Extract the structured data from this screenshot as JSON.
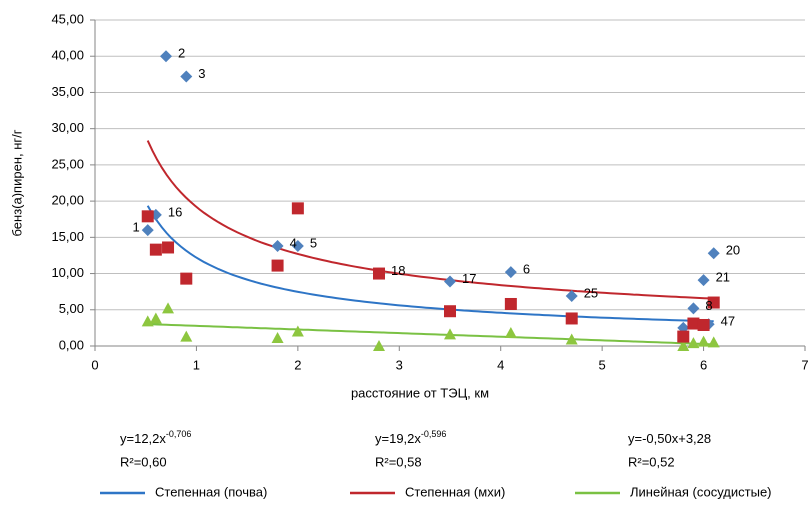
{
  "chart_data": {
    "type": "scatter",
    "x_label": "расстояние от ТЭЦ, км",
    "y_label": "бенз(а)пирен, нг/г",
    "xlim": [
      0,
      7
    ],
    "xticks": [
      0,
      1,
      2,
      3,
      4,
      5,
      6,
      7
    ],
    "ylim": [
      0,
      45
    ],
    "yticks": [
      {
        "value": 0,
        "label": "0,00"
      },
      {
        "value": 5,
        "label": "5,00"
      },
      {
        "value": 10,
        "label": "10,00"
      },
      {
        "value": 15,
        "label": "15,00"
      },
      {
        "value": 20,
        "label": "20,00"
      },
      {
        "value": 25,
        "label": "25,00"
      },
      {
        "value": 30,
        "label": "30,00"
      },
      {
        "value": 35,
        "label": "35,00"
      },
      {
        "value": 40,
        "label": "40,00"
      },
      {
        "value": 45,
        "label": "45,00"
      }
    ],
    "grid": true,
    "series": [
      {
        "color": "#4f81bd",
        "marker": "diamond",
        "x": [
          0.52,
          0.6,
          0.7,
          0.9,
          1.8,
          2.0,
          2.8,
          3.5,
          4.1,
          4.7,
          5.8,
          5.9,
          6.0,
          6.1,
          6.05
        ],
        "values": [
          16.0,
          18.1,
          40.0,
          37.2,
          13.8,
          13.8,
          10.0,
          8.9,
          10.2,
          6.9,
          2.5,
          5.2,
          9.1,
          12.8,
          3.0
        ],
        "point_labels": [
          "1",
          "16",
          "2",
          "3",
          "4",
          "5",
          "18",
          "17",
          "6",
          "25",
          null,
          "8",
          "21",
          "20",
          "47"
        ]
      },
      {
        "color": "#c0272d",
        "marker": "square",
        "x": [
          0.52,
          0.6,
          0.72,
          0.9,
          1.8,
          2.0,
          2.8,
          3.5,
          4.1,
          4.7,
          5.8,
          5.9,
          6.0,
          6.1
        ],
        "values": [
          17.9,
          13.3,
          13.6,
          9.3,
          11.1,
          19.0,
          10.0,
          4.8,
          5.8,
          3.8,
          1.3,
          3.1,
          2.9,
          6.0
        ]
      },
      {
        "color": "#8dc63f",
        "marker": "triangle",
        "x": [
          0.52,
          0.6,
          0.72,
          0.9,
          1.8,
          2.0,
          2.8,
          3.5,
          4.1,
          4.7,
          5.8,
          5.9,
          6.0,
          6.1
        ],
        "values": [
          3.4,
          3.8,
          5.2,
          1.3,
          1.1,
          2.0,
          0.0,
          1.6,
          1.8,
          0.9,
          0.0,
          0.4,
          0.6,
          0.5
        ]
      }
    ],
    "trendlines": [
      {
        "name": "Степенная (почва)",
        "color": "#2e75c6",
        "kind": "power",
        "a": 12.2,
        "b": -0.706,
        "range": [
          0.52,
          6.1
        ],
        "equation": {
          "base": "y=12,2x",
          "exponent": "-0,706"
        },
        "r2": "R²=0,60"
      },
      {
        "name": "Степенная (мхи)",
        "color": "#c0272d",
        "kind": "power",
        "a": 19.2,
        "b": -0.596,
        "range": [
          0.52,
          6.1
        ],
        "equation": {
          "base": "y=19,2x",
          "exponent": "-0,596"
        },
        "r2": "R²=0,58"
      },
      {
        "name": "Линейная (сосудистые)",
        "color": "#7ac143",
        "kind": "linear",
        "a": -0.5,
        "b": 3.28,
        "range": [
          0.52,
          6.1
        ],
        "equation": {
          "base": "y=-0,50x+3,28",
          "exponent": null
        },
        "r2": "R²=0,52"
      }
    ]
  }
}
